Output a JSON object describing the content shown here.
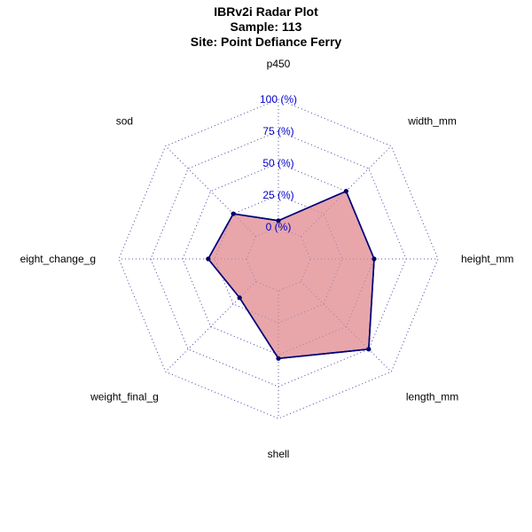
{
  "chart_data": {
    "type": "radar",
    "title": [
      "IBRv2i Radar Plot",
      "Sample: 113",
      "Site: Point Defiance Ferry"
    ],
    "axes": [
      "p450",
      "width_mm",
      "height_mm",
      "length_mm",
      "shell",
      "weight_final_g",
      "weight_change_g",
      "sod"
    ],
    "axis_label_text": [
      "p450",
      "width_mm",
      "height_mm",
      "length_mm",
      "shell",
      "weight_final_g",
      "eight_change_g",
      "sod"
    ],
    "grid_labels": [
      "0 (%)",
      "25 (%)",
      "50 (%)",
      "75 (%)",
      "100 (%)"
    ],
    "grid_values": [
      0,
      25,
      50,
      75,
      100
    ],
    "range": [
      0,
      100
    ],
    "series": [
      {
        "values": [
          5,
          50,
          50,
          75,
          53,
          18,
          30,
          25
        ]
      }
    ],
    "colors": {
      "fill": "#e8a6aa",
      "line": "#00007a",
      "point": "#00006b",
      "grid": "#5555aa",
      "grid_label": "#0000cc"
    }
  }
}
